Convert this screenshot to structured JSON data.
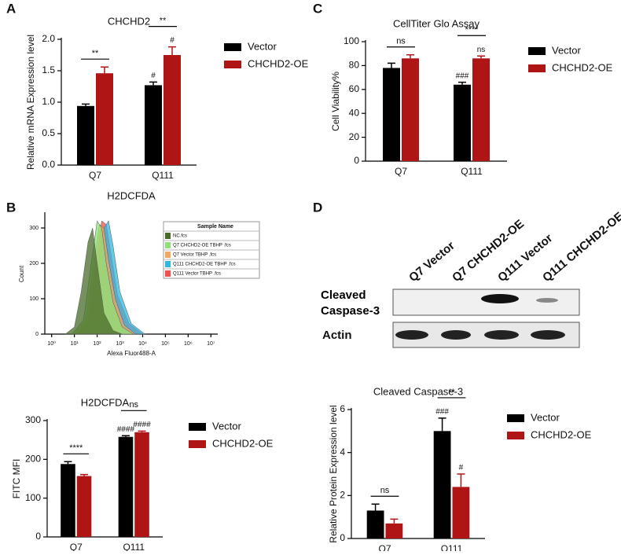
{
  "panel_labels": [
    "A",
    "B",
    "C",
    "D"
  ],
  "chart_data": [
    {
      "type": "bar",
      "title": "CHCHD2",
      "ylabel": "Relative mRNA Expression level",
      "categories": [
        "Q7",
        "Q111"
      ],
      "series": [
        {
          "name": "Vector",
          "color": "#000000",
          "values": [
            0.94,
            1.27
          ],
          "errors": [
            0.03,
            0.05
          ],
          "marks": [
            null,
            "#"
          ]
        },
        {
          "name": "CHCHD2-OE",
          "color": "#b01515",
          "values": [
            1.46,
            1.75
          ],
          "errors": [
            0.1,
            0.13
          ],
          "marks": [
            null,
            "#"
          ]
        }
      ],
      "pair_labels": [
        "**",
        "**"
      ],
      "ylim": [
        0,
        2
      ],
      "yticks": [
        {
          "value": 0,
          "label": "0.0"
        },
        {
          "value": 0.5,
          "label": "0.5"
        },
        {
          "value": 1,
          "label": "1.0"
        },
        {
          "value": 1.5,
          "label": "1.5"
        },
        {
          "value": 2,
          "label": "2.0"
        }
      ]
    },
    {
      "type": "area",
      "title": "H2DCFDA",
      "xlabel": "Alexa Fluor488-A",
      "ylabel": "Count",
      "legend_title": "Sample Name",
      "series": [
        {
          "name": "NC.fcs",
          "color": "#4a6b2a",
          "x": [
            0.6,
            1.0,
            1.3,
            1.6,
            1.8,
            2.0,
            2.3,
            2.7,
            3.1
          ],
          "values": [
            0,
            20,
            120,
            260,
            300,
            200,
            60,
            10,
            0
          ]
        },
        {
          "name": "Q7 CHCHD2-OE TBHP .fcs",
          "color": "#8fe07a",
          "x": [
            0.9,
            1.4,
            1.7,
            2.0,
            2.2,
            2.4,
            2.7,
            3.1,
            3.6
          ],
          "values": [
            0,
            40,
            180,
            320,
            300,
            200,
            90,
            20,
            0
          ]
        },
        {
          "name": "Q7 Vector TBHP .fcs",
          "color": "#f0a860",
          "x": [
            1.0,
            1.5,
            1.8,
            2.1,
            2.3,
            2.5,
            2.8,
            3.2,
            3.7
          ],
          "values": [
            0,
            40,
            170,
            310,
            300,
            210,
            100,
            25,
            0
          ]
        },
        {
          "name": "Q111 CHCHD2-OE TBHP .fcs",
          "color": "#30b8e0",
          "x": [
            1.2,
            1.7,
            2.0,
            2.3,
            2.5,
            2.7,
            3.0,
            3.5,
            4.1
          ],
          "values": [
            0,
            40,
            170,
            300,
            320,
            250,
            120,
            30,
            0
          ]
        },
        {
          "name": "Q111 Vector TBHP .fcs",
          "color": "#f05050",
          "x": [
            1.1,
            1.6,
            1.9,
            2.2,
            2.4,
            2.6,
            2.9,
            3.4,
            4.0
          ],
          "values": [
            0,
            40,
            180,
            320,
            310,
            230,
            110,
            30,
            0
          ]
        }
      ],
      "xlim": [
        -0.3,
        7.3
      ],
      "xticks": [
        {
          "value": 0,
          "label": "10⁰"
        },
        {
          "value": 1,
          "label": "10¹"
        },
        {
          "value": 2,
          "label": "10²"
        },
        {
          "value": 3,
          "label": "10³"
        },
        {
          "value": 4,
          "label": "10⁴"
        },
        {
          "value": 5,
          "label": "10⁵"
        },
        {
          "value": 6,
          "label": "10⁶"
        },
        {
          "value": 7,
          "label": "10⁷"
        }
      ],
      "ylim": [
        0,
        340
      ],
      "yticks": [
        0,
        100,
        200,
        300
      ]
    },
    {
      "type": "bar",
      "title": "CellTiter Glo Assay",
      "ylabel": "Cell Viability%",
      "categories": [
        "Q7",
        "Q111"
      ],
      "series": [
        {
          "name": "Vector",
          "color": "#000000",
          "values": [
            78,
            64
          ],
          "errors": [
            4,
            2
          ],
          "marks": [
            null,
            "###"
          ]
        },
        {
          "name": "CHCHD2-OE",
          "color": "#b01515",
          "values": [
            86,
            86
          ],
          "errors": [
            3,
            2
          ],
          "marks": [
            null,
            "ns"
          ]
        }
      ],
      "pair_labels": [
        "ns",
        "****"
      ],
      "ylim": [
        0,
        100
      ],
      "yticks": [
        0,
        20,
        40,
        60,
        80,
        100
      ]
    },
    {
      "type": "bar",
      "title": "H2DCFDA",
      "ylabel": "FITC MFI",
      "categories": [
        "Q7",
        "Q111"
      ],
      "series": [
        {
          "name": "Vector",
          "color": "#000000",
          "values": [
            188,
            258
          ],
          "errors": [
            6,
            3
          ],
          "marks": [
            null,
            "####"
          ]
        },
        {
          "name": "CHCHD2-OE",
          "color": "#b01515",
          "values": [
            157,
            270
          ],
          "errors": [
            4,
            3
          ],
          "marks": [
            null,
            "####"
          ]
        }
      ],
      "pair_labels": [
        "****",
        "ns"
      ],
      "ylim": [
        0,
        300
      ],
      "yticks": [
        0,
        100,
        200,
        300
      ]
    },
    {
      "type": "bar",
      "title": "Cleaved Caspase-3",
      "ylabel": "Relative Protein Expression level",
      "categories": [
        "Q7",
        "Q111"
      ],
      "series": [
        {
          "name": "Vector",
          "color": "#000000",
          "values": [
            1.3,
            5.0
          ],
          "errors": [
            0.3,
            0.6
          ],
          "marks": [
            null,
            "###"
          ]
        },
        {
          "name": "CHCHD2-OE",
          "color": "#b01515",
          "values": [
            0.7,
            2.4
          ],
          "errors": [
            0.2,
            0.6
          ],
          "marks": [
            null,
            "#"
          ]
        }
      ],
      "pair_labels": [
        "ns",
        "**"
      ],
      "ylim": [
        0,
        6
      ],
      "yticks": [
        0,
        2,
        4,
        6
      ]
    }
  ],
  "blot": {
    "lanes": [
      "Q7 Vector",
      "Q7 CHCHD2-OE",
      "Q111 Vector",
      "Q111 CHCHD2-OE"
    ],
    "rows": [
      "Cleaved Caspase-3",
      "Actin"
    ]
  }
}
